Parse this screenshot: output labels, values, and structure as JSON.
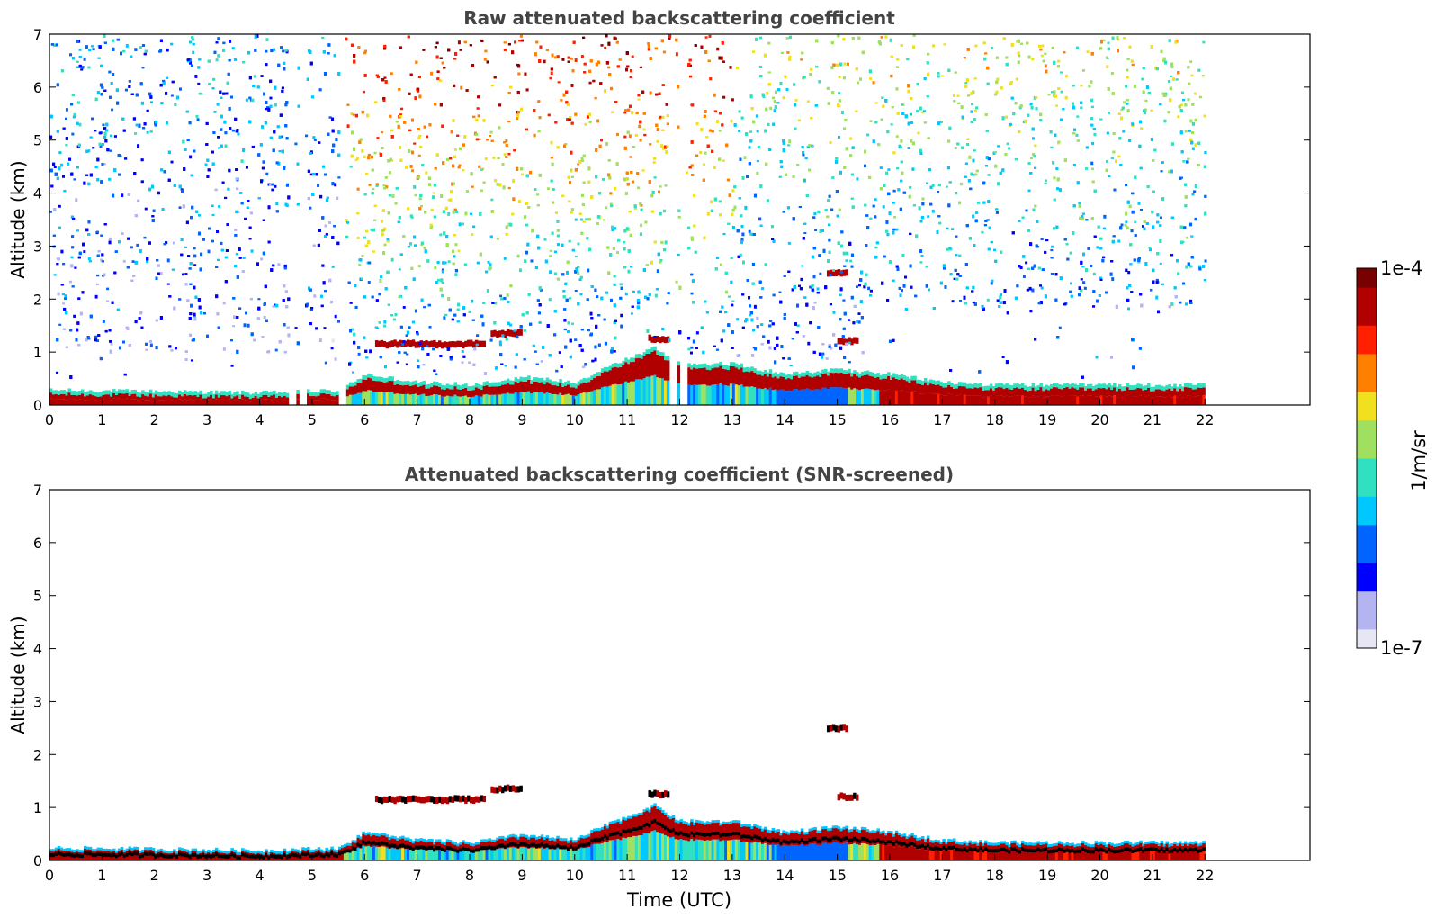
{
  "chart_data": [
    {
      "type": "heatmap",
      "title": "Raw attenuated backscattering coefficient",
      "xlabel": "",
      "ylabel": "Altitude (km)",
      "xlim": [
        0,
        24
      ],
      "ylim": [
        0,
        7
      ],
      "x_ticks": [
        "0",
        "1",
        "2",
        "3",
        "4",
        "5",
        "6",
        "7",
        "8",
        "9",
        "10",
        "11",
        "12",
        "13",
        "14",
        "15",
        "16",
        "17",
        "18",
        "19",
        "20",
        "21",
        "22"
      ],
      "y_ticks": [
        "0",
        "1",
        "2",
        "3",
        "4",
        "5",
        "6",
        "7"
      ],
      "data_end_time": 22,
      "boundary_layer": {
        "time": [
          0,
          2,
          4,
          5.5,
          6,
          7,
          8,
          9,
          10,
          10.5,
          11,
          11.5,
          12,
          13,
          14,
          15,
          16,
          17,
          18,
          20,
          22
        ],
        "top_km": [
          0.2,
          0.18,
          0.15,
          0.2,
          0.5,
          0.35,
          0.3,
          0.45,
          0.35,
          0.6,
          0.8,
          1.0,
          0.7,
          0.7,
          0.5,
          0.6,
          0.5,
          0.35,
          0.3,
          0.3,
          0.3
        ]
      },
      "elevated_layers": [
        {
          "t_start": 6.2,
          "t_end": 8.3,
          "alt_km": 1.15
        },
        {
          "t_start": 8.4,
          "t_end": 9.0,
          "alt_km": 1.35
        },
        {
          "t_start": 11.4,
          "t_end": 11.8,
          "alt_km": 1.25
        },
        {
          "t_start": 14.8,
          "t_end": 15.2,
          "alt_km": 2.5
        },
        {
          "t_start": 15.0,
          "t_end": 15.4,
          "alt_km": 1.2
        }
      ],
      "missing_data_times": [
        4.6,
        4.8,
        5.55,
        11.85,
        12.05
      ]
    },
    {
      "type": "heatmap",
      "title": "Attenuated backscattering coefficient (SNR-screened)",
      "xlabel": "Time (UTC)",
      "ylabel": "Altitude (km)",
      "xlim": [
        0,
        24
      ],
      "ylim": [
        0,
        7
      ],
      "x_ticks": [
        "0",
        "1",
        "2",
        "3",
        "4",
        "5",
        "6",
        "7",
        "8",
        "9",
        "10",
        "11",
        "12",
        "13",
        "14",
        "15",
        "16",
        "17",
        "18",
        "19",
        "20",
        "21",
        "22"
      ],
      "y_ticks": [
        "0",
        "1",
        "2",
        "3",
        "4",
        "5",
        "6",
        "7"
      ],
      "data_end_time": 22,
      "boundary_layer": {
        "time": [
          0,
          2,
          4,
          5.5,
          6,
          7,
          8,
          9,
          10,
          10.5,
          11,
          11.5,
          12,
          13,
          14,
          15,
          16,
          17,
          18,
          20,
          22
        ],
        "top_km": [
          0.2,
          0.18,
          0.15,
          0.2,
          0.5,
          0.35,
          0.3,
          0.45,
          0.35,
          0.6,
          0.8,
          1.0,
          0.7,
          0.7,
          0.5,
          0.6,
          0.5,
          0.35,
          0.3,
          0.3,
          0.3
        ]
      },
      "elevated_layers": [
        {
          "t_start": 6.2,
          "t_end": 8.3,
          "alt_km": 1.15
        },
        {
          "t_start": 8.4,
          "t_end": 9.0,
          "alt_km": 1.35
        },
        {
          "t_start": 11.4,
          "t_end": 11.8,
          "alt_km": 1.25
        },
        {
          "t_start": 14.8,
          "t_end": 15.2,
          "alt_km": 2.5
        },
        {
          "t_start": 15.0,
          "t_end": 15.4,
          "alt_km": 1.2
        }
      ]
    }
  ],
  "colorbar": {
    "label": "1/m/sr",
    "max_label": "1e-4",
    "min_label": "1e-7",
    "scale": "log",
    "range": [
      1e-07,
      0.0001
    ],
    "colormap": [
      "#e6e6f5",
      "#b4b4f0",
      "#0000ff",
      "#0064ff",
      "#00c8ff",
      "#30e0c0",
      "#a0e060",
      "#f0e020",
      "#ff8000",
      "#ff2000",
      "#b00000",
      "#780000"
    ]
  }
}
